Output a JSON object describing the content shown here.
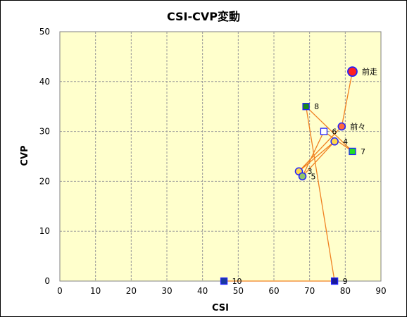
{
  "chart_data": {
    "type": "scatter",
    "title": "CSI-CVP変動",
    "xlabel": "CSI",
    "ylabel": "CVP",
    "xlim": [
      0,
      90
    ],
    "ylim": [
      0,
      50
    ],
    "xticks": [
      0,
      10,
      20,
      30,
      40,
      50,
      60,
      70,
      80,
      90
    ],
    "yticks": [
      0,
      10,
      20,
      30,
      40,
      50
    ],
    "grid": true,
    "plot_background": "#ffffcc",
    "line_color": "#f08020",
    "points": [
      {
        "label": "前走",
        "x": 82,
        "y": 42,
        "marker": "circle-large",
        "fill": "#ff2020",
        "stroke": "#2020ff"
      },
      {
        "label": "前々",
        "x": 79,
        "y": 31,
        "marker": "circle",
        "fill": "#ff6a3c",
        "stroke": "#2020ff"
      },
      {
        "label": "3",
        "x": 67,
        "y": 22,
        "marker": "circle",
        "fill": "#ffd84a",
        "stroke": "#2020ff"
      },
      {
        "label": "4",
        "x": 77,
        "y": 28,
        "marker": "circle",
        "fill": "#ffd84a",
        "stroke": "#2020ff"
      },
      {
        "label": "5",
        "x": 68,
        "y": 21,
        "marker": "circle",
        "fill": "#8fc46a",
        "stroke": "#2020ff"
      },
      {
        "label": "6",
        "x": 74,
        "y": 30,
        "marker": "square",
        "fill": "#ffffff",
        "stroke": "#2020ff"
      },
      {
        "label": "7",
        "x": 82,
        "y": 26,
        "marker": "square",
        "fill": "#22dd22",
        "stroke": "#2020ff"
      },
      {
        "label": "8",
        "x": 69,
        "y": 35,
        "marker": "square",
        "fill": "#1a8a1a",
        "stroke": "#2020ff"
      },
      {
        "label": "9",
        "x": 77,
        "y": 0,
        "marker": "square",
        "fill": "#1a1a9a",
        "stroke": "#2020ff"
      },
      {
        "label": "10",
        "x": 46,
        "y": 0,
        "marker": "square",
        "fill": "#1a3aa0",
        "stroke": "#2020ff"
      }
    ]
  }
}
